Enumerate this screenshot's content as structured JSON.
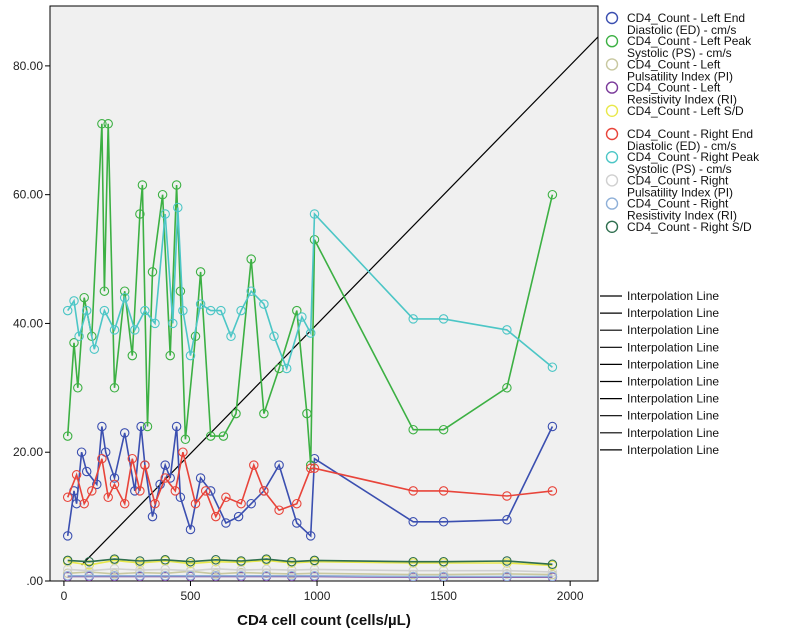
{
  "chart_data": {
    "type": "scatter",
    "title": "",
    "xlabel": "CD4 cell count (cells/µL)",
    "ylabel": "",
    "xlim": [
      -55,
      2110
    ],
    "ylim": [
      0,
      89.3
    ],
    "x_ticks": [
      0,
      500,
      1000,
      1500,
      2000
    ],
    "x_tick_labels": [
      "0",
      "500",
      "1000",
      "1500",
      "2000"
    ],
    "y_ticks": [
      0,
      20,
      40,
      60,
      80
    ],
    "y_tick_labels": [
      ".00",
      "20.00",
      "40.00",
      "60.00",
      "80.00"
    ],
    "grid": false,
    "background": "#f0f0f0",
    "legend_position": "right",
    "reference_line": {
      "x": [
        70,
        2110
      ],
      "y": [
        2.5,
        84.5
      ],
      "color": "#000000"
    },
    "interpolation_label": "Interpolation Line",
    "series": [
      {
        "name": "CD4_Count - Left End Diastolic (ED) - cm/s",
        "color": "#3b4fb0",
        "x": [
          15,
          40,
          50,
          70,
          90,
          130,
          150,
          165,
          200,
          240,
          280,
          305,
          320,
          350,
          380,
          400,
          420,
          445,
          460,
          500,
          540,
          580,
          640,
          690,
          740,
          790,
          850,
          920,
          975,
          990,
          1380,
          1500,
          1750,
          1930
        ],
        "y": [
          7,
          14,
          12,
          20,
          17,
          15,
          24,
          20,
          16,
          23,
          14,
          24,
          18,
          10,
          15,
          18,
          16,
          24,
          13,
          8,
          16,
          14,
          9,
          10,
          12,
          14,
          18,
          9,
          7,
          19,
          9.2,
          9.2,
          9.5,
          24
        ]
      },
      {
        "name": "CD4_Count - Left Peak Systolic (PS) - cm/s",
        "color": "#3cb043",
        "x": [
          15,
          40,
          55,
          80,
          110,
          150,
          160,
          175,
          200,
          240,
          270,
          300,
          310,
          330,
          350,
          390,
          420,
          445,
          460,
          480,
          520,
          540,
          580,
          630,
          680,
          740,
          790,
          850,
          920,
          960,
          975,
          990,
          1380,
          1500,
          1750,
          1930
        ],
        "y": [
          22.5,
          37,
          30,
          44,
          38,
          71,
          45,
          71,
          30,
          45,
          35,
          57,
          61.5,
          24,
          48,
          60,
          35,
          61.5,
          45,
          22,
          38,
          48,
          22.5,
          22.5,
          26,
          50,
          26,
          33,
          42,
          26,
          18,
          53,
          23.5,
          23.5,
          30,
          60
        ]
      },
      {
        "name": "CD4_Count - Left Pulsatility Index (PI)",
        "color": "#c8c8a0",
        "x": [
          15,
          100,
          200,
          300,
          400,
          500,
          600,
          700,
          800,
          900,
          990,
          1380,
          1500,
          1750,
          1930
        ],
        "y": [
          1.2,
          1.4,
          1.1,
          1.3,
          1.2,
          1.5,
          1.1,
          1.3,
          1.2,
          1.1,
          1.2,
          1.0,
          1.0,
          1.1,
          1.0
        ]
      },
      {
        "name": "CD4_Count - Left Resistivity Index (RI)",
        "color": "#7a3a9a",
        "x": [
          15,
          100,
          200,
          300,
          400,
          500,
          600,
          700,
          800,
          900,
          990,
          1380,
          1500,
          1750,
          1930
        ],
        "y": [
          0.7,
          0.7,
          0.7,
          0.7,
          0.7,
          0.7,
          0.7,
          0.7,
          0.7,
          0.7,
          0.7,
          0.6,
          0.6,
          0.6,
          0.6
        ]
      },
      {
        "name": "CD4_Count - Left S/D",
        "color": "#e8e84a",
        "x": [
          15,
          100,
          200,
          300,
          400,
          500,
          600,
          700,
          800,
          900,
          990,
          1380,
          1500,
          1750,
          1930
        ],
        "y": [
          3,
          2.5,
          3.2,
          2.8,
          3.1,
          2.7,
          3.0,
          2.9,
          3.2,
          2.8,
          3.0,
          2.8,
          2.8,
          2.8,
          2.4
        ]
      },
      {
        "name": "CD4_Count - Right End Diastolic (ED) - cm/s",
        "color": "#e8443a",
        "x": [
          15,
          50,
          80,
          110,
          150,
          175,
          200,
          240,
          270,
          300,
          320,
          360,
          400,
          440,
          470,
          520,
          560,
          600,
          640,
          700,
          750,
          790,
          850,
          920,
          975,
          990,
          1380,
          1500,
          1750,
          1930
        ],
        "y": [
          13,
          16.5,
          12,
          14,
          19,
          13,
          15,
          12,
          19,
          14,
          18,
          12,
          16,
          14,
          20,
          12,
          14,
          10,
          13,
          12,
          18,
          14,
          11,
          12,
          17.5,
          17.5,
          14,
          14,
          13.2,
          14
        ]
      },
      {
        "name": "CD4_Count - Right Peak Systolic (PS) - cm/s",
        "color": "#4cc6c6",
        "x": [
          15,
          40,
          60,
          90,
          120,
          160,
          200,
          240,
          280,
          320,
          360,
          400,
          430,
          450,
          470,
          500,
          540,
          580,
          620,
          660,
          700,
          740,
          790,
          830,
          880,
          940,
          975,
          990,
          1380,
          1500,
          1750,
          1930
        ],
        "y": [
          42,
          43.5,
          38,
          42,
          36,
          42,
          39,
          44,
          39,
          42,
          40,
          57,
          40,
          58,
          42,
          35,
          43,
          42,
          42,
          38,
          42,
          45,
          43,
          38,
          33,
          41,
          38.5,
          57,
          40.7,
          40.7,
          39,
          33.2
        ]
      },
      {
        "name": "CD4_Count - Right Pulsatility Index (PI)",
        "color": "#d0d0d0",
        "x": [
          15,
          100,
          200,
          300,
          400,
          500,
          600,
          700,
          800,
          900,
          990,
          1380,
          1500,
          1750,
          1930
        ],
        "y": [
          1.8,
          1.6,
          1.9,
          1.7,
          1.8,
          1.6,
          1.9,
          1.7,
          1.8,
          1.7,
          1.8,
          1.6,
          1.6,
          1.6,
          1.4
        ]
      },
      {
        "name": "CD4_Count - Right Resistivity Index (RI)",
        "color": "#8fb0d8",
        "x": [
          15,
          100,
          200,
          300,
          400,
          500,
          600,
          700,
          800,
          900,
          990,
          1380,
          1500,
          1750,
          1930
        ],
        "y": [
          0.8,
          0.8,
          0.8,
          0.8,
          0.8,
          0.8,
          0.8,
          0.8,
          0.8,
          0.8,
          0.8,
          0.7,
          0.7,
          0.7,
          0.7
        ]
      },
      {
        "name": "CD4_Count - Right S/D",
        "color": "#2e6e4e",
        "x": [
          15,
          100,
          200,
          300,
          400,
          500,
          600,
          700,
          800,
          900,
          990,
          1380,
          1500,
          1750,
          1930
        ],
        "y": [
          3.2,
          3.0,
          3.4,
          3.1,
          3.3,
          3.0,
          3.3,
          3.1,
          3.4,
          3.0,
          3.2,
          3.0,
          3.0,
          3.1,
          2.6
        ]
      }
    ]
  }
}
